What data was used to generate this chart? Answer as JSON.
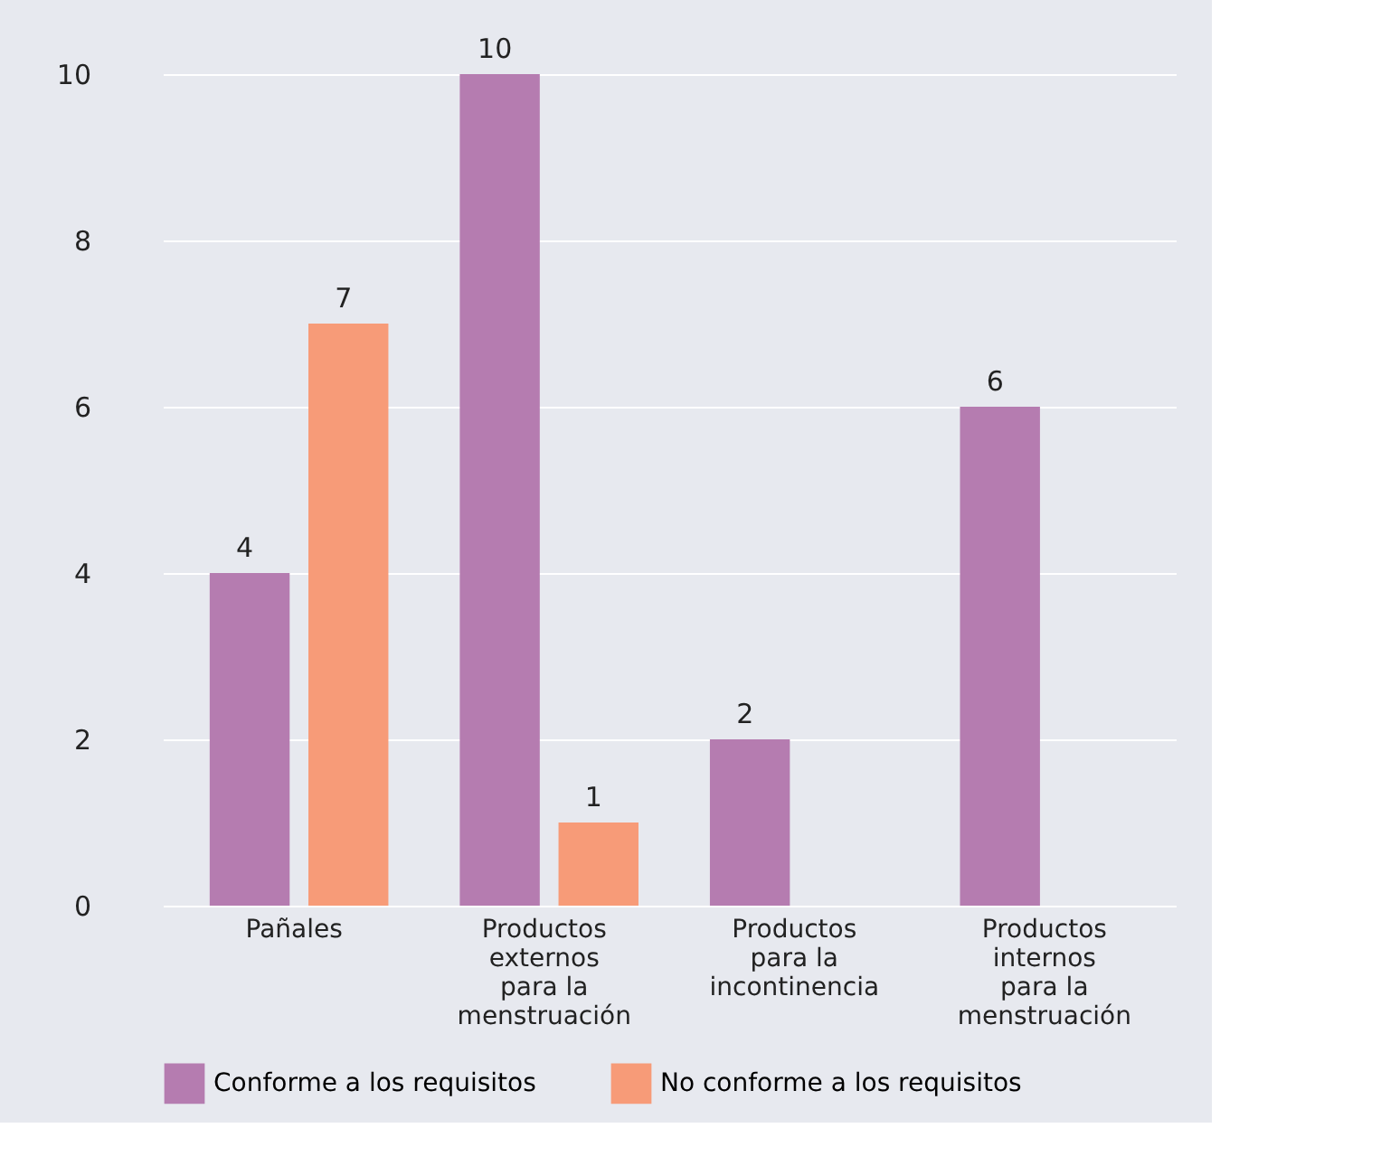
{
  "chart_data": {
    "type": "bar",
    "categories": [
      "Pañales",
      "Productos externos para la menstruación",
      "Productos para la incontinencia",
      "Productos internos para la menstruación"
    ],
    "series": [
      {
        "name": "Conforme a los requisitos",
        "color": "#b57cb0",
        "values": [
          4,
          10,
          2,
          6
        ]
      },
      {
        "name": "No conforme a los requisitos",
        "color": "#f79b78",
        "values": [
          7,
          1,
          null,
          null
        ]
      }
    ],
    "ylim": [
      0,
      10
    ],
    "yticks": [
      0,
      2,
      4,
      6,
      8,
      10
    ],
    "grid": "y",
    "legend": "bottom",
    "data_labels": true
  }
}
